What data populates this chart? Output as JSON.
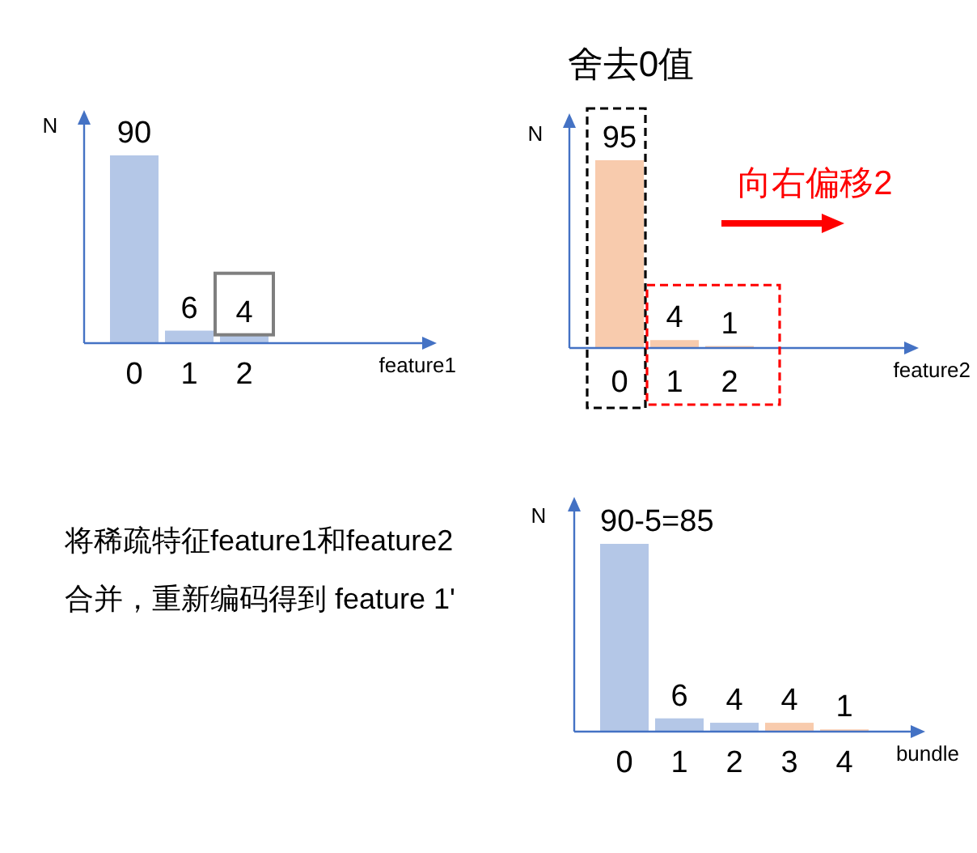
{
  "chart_data": [
    {
      "type": "bar",
      "ylabel": "N",
      "xlabel": "feature1",
      "categories": [
        "0",
        "1",
        "2"
      ],
      "values": [
        90,
        6,
        4
      ],
      "color": "#b4c7e7",
      "data_labels": true
    },
    {
      "type": "bar",
      "title": "舍去0值",
      "ylabel": "N",
      "xlabel": "feature2",
      "categories": [
        "0",
        "1",
        "2"
      ],
      "values": [
        95,
        4,
        1
      ],
      "color": "#f8cbad",
      "data_labels": true,
      "annotations": [
        "向右偏移2"
      ]
    },
    {
      "type": "bar",
      "ylabel": "N",
      "xlabel": "bundle",
      "categories": [
        "0",
        "1",
        "2",
        "3",
        "4"
      ],
      "values": [
        85,
        6,
        4,
        4,
        1
      ],
      "colors": [
        "#b4c7e7",
        "#b4c7e7",
        "#b4c7e7",
        "#f8cbad",
        "#f8cbad"
      ],
      "value_labels": [
        "90-5=85",
        "6",
        "4",
        "4",
        "1"
      ],
      "annotations": [
        "将稀疏特征feature1和feature2 合并，重新编码得到 feature 1'"
      ]
    }
  ]
}
